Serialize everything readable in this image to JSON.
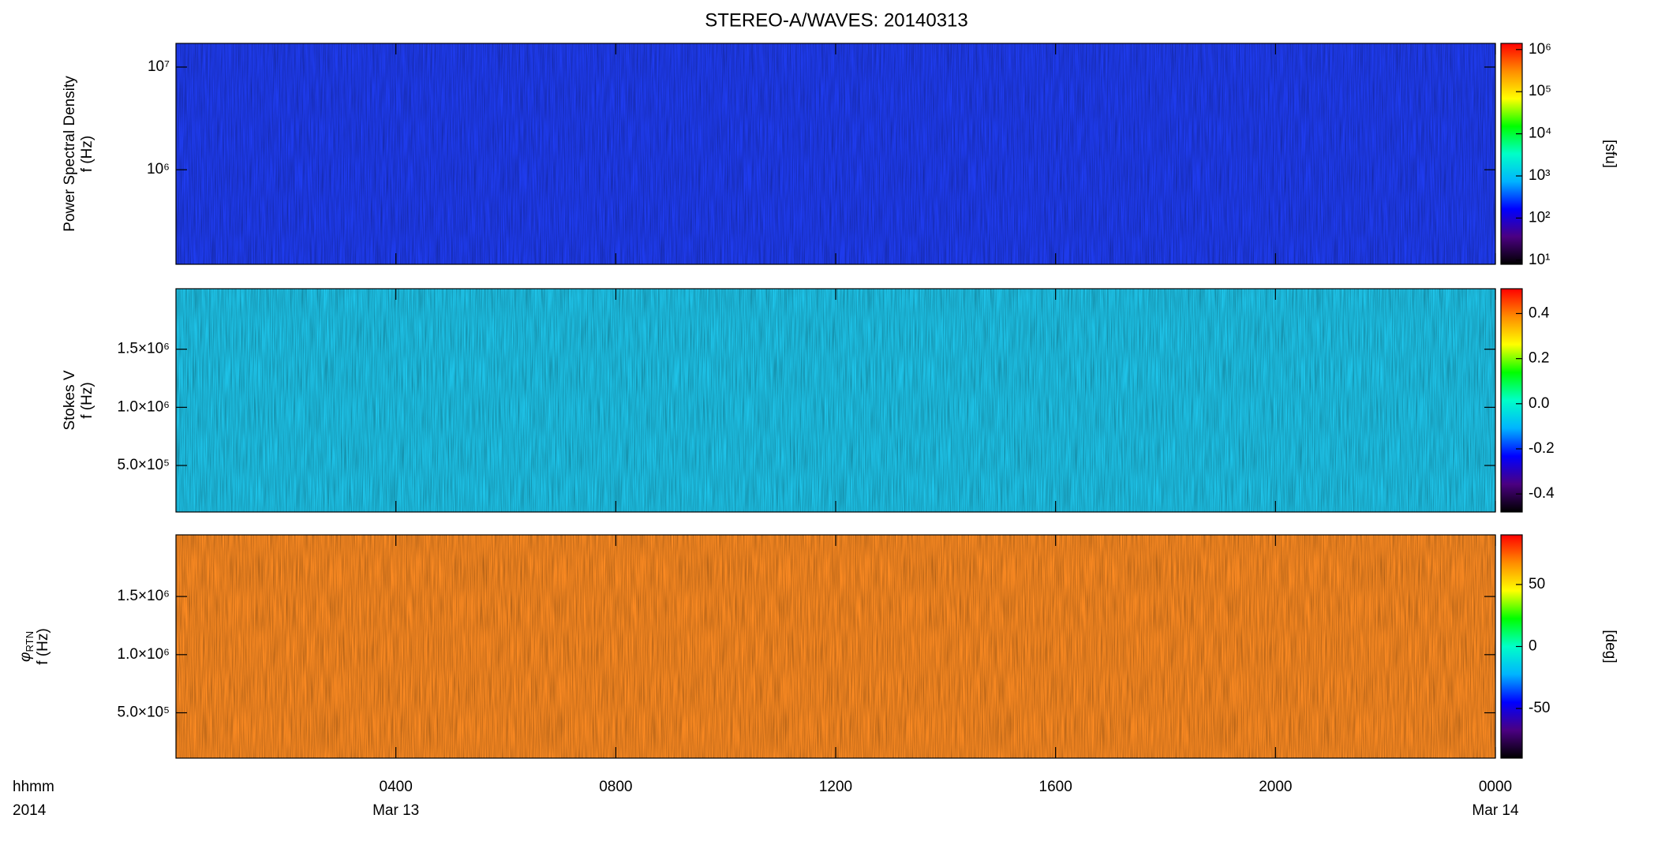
{
  "chart_data": [
    {
      "type": "heatmap",
      "title": "STEREO-A/WAVES: 20140313",
      "ylabel": [
        "Power Spectral Density",
        "f (Hz)"
      ],
      "ylog": true,
      "ylim": [
        120000,
        17000000
      ],
      "yticks": [
        {
          "value": 1000000,
          "label": "10⁶"
        },
        {
          "value": 10000000,
          "label": "10⁷"
        }
      ],
      "clog": true,
      "clim": [
        8,
        1400000
      ],
      "cticks": [
        {
          "value": 10,
          "label": "10¹"
        },
        {
          "value": 100,
          "label": "10²"
        },
        {
          "value": 1000,
          "label": "10³"
        },
        {
          "value": 10000,
          "label": "10⁴"
        },
        {
          "value": 100000,
          "label": "10⁵"
        },
        {
          "value": 1000000,
          "label": "10⁶"
        }
      ],
      "clabel": "[sfu]",
      "colormap": [
        "#000000",
        "#4b0082",
        "#0000ff",
        "#00b4ff",
        "#00ffc8",
        "#00ff00",
        "#ffff00",
        "#ff8c00",
        "#ff0000"
      ],
      "base_color": "#1f3cf0"
    },
    {
      "type": "heatmap",
      "ylabel": [
        "Stokes V",
        "f (Hz)"
      ],
      "ylog": false,
      "ylim": [
        100000,
        2020000
      ],
      "yticks": [
        {
          "value": 500000,
          "label": "5.0×10⁵"
        },
        {
          "value": 1000000,
          "label": "1.0×10⁶"
        },
        {
          "value": 1500000,
          "label": "1.5×10⁶"
        }
      ],
      "clog": false,
      "clim": [
        -0.48,
        0.51
      ],
      "cticks": [
        -0.4,
        -0.2,
        {
          "value": 0,
          "label": "0.0"
        },
        0.2,
        0.4
      ],
      "colormap": [
        "#000000",
        "#4b0082",
        "#0000ff",
        "#00b4ff",
        "#00ffc8",
        "#00ff00",
        "#ffff00",
        "#ff8c00",
        "#ff0000"
      ],
      "base_color": "#1ec3e8"
    },
    {
      "type": "heatmap",
      "ylabel_symbol": "φ",
      "ylabel_subscript": "RTN",
      "ylabel": [
        "f (Hz)"
      ],
      "ylog": false,
      "ylim": [
        110000,
        2030000
      ],
      "yticks": [
        {
          "value": 500000,
          "label": "5.0×10⁵"
        },
        {
          "value": 1000000,
          "label": "1.0×10⁶"
        },
        {
          "value": 1500000,
          "label": "1.5×10⁶"
        }
      ],
      "clog": false,
      "clim": [
        -90,
        90
      ],
      "cticks": [
        -50,
        0,
        50
      ],
      "clabel": "[deg]",
      "colormap": [
        "#000000",
        "#4b0082",
        "#0000ff",
        "#00b4ff",
        "#00ffc8",
        "#00ff00",
        "#ffff00",
        "#ff8c00",
        "#ff0000"
      ],
      "base_color": "#fb8a22",
      "xlim": [
        0,
        24
      ],
      "xticks": [
        {
          "value": 4,
          "label": "0400"
        },
        {
          "value": 8,
          "label": "0800"
        },
        {
          "value": 12,
          "label": "1200"
        },
        {
          "value": 16,
          "label": "1600"
        },
        {
          "value": 20,
          "label": "2000"
        },
        {
          "value": 24,
          "label": "0000"
        }
      ],
      "date_labels": [
        {
          "value": 4,
          "label": "Mar 13"
        },
        {
          "value": 24,
          "label": "Mar 14"
        }
      ],
      "x_label": [
        "hhmm",
        "2014"
      ]
    }
  ]
}
